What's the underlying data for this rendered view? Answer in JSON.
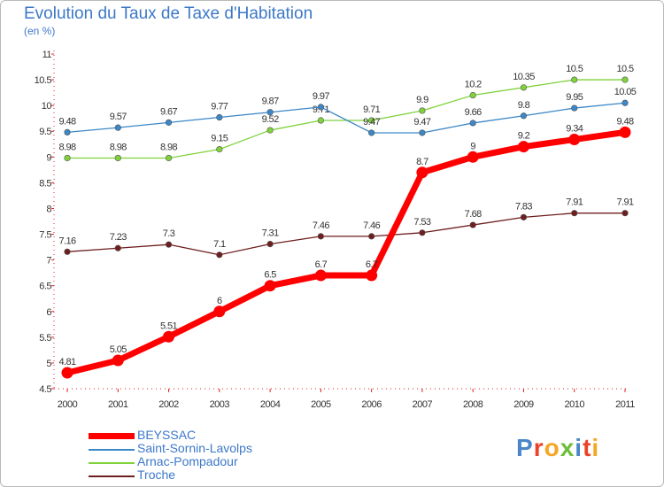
{
  "title": "Evolution du Taux de Taxe d'Habitation",
  "subtitle": "(en %)",
  "logo": {
    "text": "Proxiti",
    "colors": [
      "#4a86c8",
      "#e8432b",
      "#f5a623",
      "#6cbf3a",
      "#4a86c8",
      "#e8432b",
      "#f5a623"
    ]
  },
  "chart_data": {
    "type": "line",
    "categories": [
      "2000",
      "2001",
      "2002",
      "2003",
      "2004",
      "2005",
      "2006",
      "2007",
      "2008",
      "2009",
      "2010",
      "2011"
    ],
    "ylim": [
      4.5,
      11
    ],
    "yticks": [
      "4.5",
      "5",
      "5.5",
      "6",
      "6.5",
      "7",
      "7.5",
      "8",
      "8.5",
      "9",
      "9.5",
      "10",
      "10.5",
      "11"
    ],
    "grid": false,
    "legend_position": "bottom-left",
    "series": [
      {
        "name": "Troche",
        "color": "#6e1e1e",
        "values": [
          7.16,
          7.23,
          7.3,
          7.1,
          7.31,
          7.46,
          7.46,
          7.53,
          7.68,
          7.83,
          7.91,
          7.91
        ],
        "labels": [
          "7.16",
          "7.23",
          "7.3",
          "7.1",
          "7.31",
          "7.46",
          "7.46",
          "7.53",
          "7.68",
          "7.83",
          "7.91",
          "7.91"
        ]
      },
      {
        "name": "Arnac-Pompadour",
        "color": "#7fd23c",
        "values": [
          8.98,
          8.98,
          8.98,
          9.15,
          9.52,
          9.71,
          9.71,
          9.9,
          10.2,
          10.35,
          10.5,
          10.5
        ],
        "labels": [
          "8.98",
          "8.98",
          "8.98",
          "9.15",
          "9.52",
          "9.71",
          "9.71",
          "9.9",
          "10.2",
          "10.35",
          "10.5",
          "10.5"
        ]
      },
      {
        "name": "Saint-Sornin-Lavolps",
        "color": "#3c87c8",
        "values": [
          9.48,
          9.57,
          9.67,
          9.77,
          9.87,
          9.97,
          9.47,
          9.47,
          9.66,
          9.8,
          9.95,
          10.05
        ],
        "labels": [
          "9.48",
          "9.57",
          "9.67",
          "9.77",
          "9.87",
          "9.97",
          "9.47",
          "9.47",
          "9.66",
          "9.8",
          "9.95",
          "10.05"
        ]
      },
      {
        "name": "BEYSSAC",
        "color": "#ff0000",
        "values": [
          4.81,
          5.05,
          5.51,
          6,
          6.5,
          6.7,
          6.7,
          8.7,
          9,
          9.2,
          9.34,
          9.48
        ],
        "labels": [
          "4.81",
          "5.05",
          "5.51",
          "6",
          "6.5",
          "6.7",
          "6.7",
          "8.7",
          "9",
          "9.2",
          "9.34",
          "9.48"
        ]
      }
    ],
    "legend": [
      {
        "name": "BEYSSAC",
        "color": "#ff0000"
      },
      {
        "name": "Saint-Sornin-Lavolps",
        "color": "#3c87c8"
      },
      {
        "name": "Arnac-Pompadour",
        "color": "#7fd23c"
      },
      {
        "name": "Troche",
        "color": "#6e1e1e"
      }
    ]
  }
}
